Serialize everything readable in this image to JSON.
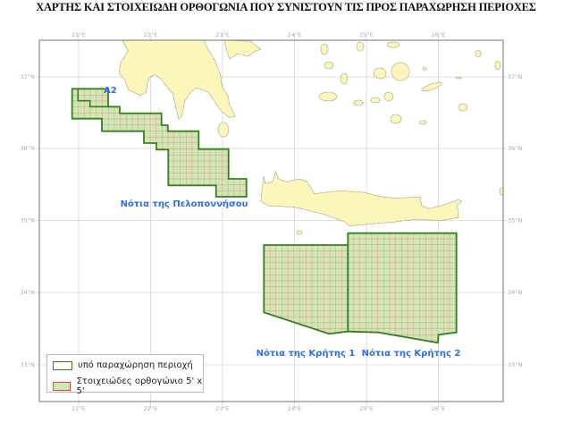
{
  "title": "ΧΑΡΤΗΣ ΚΑΙ ΣΤΟΙΧΕΙΩΔΗ ΟΡΘΟΓΩΝΙΑ ΠΟΥ ΣΥΝΙΣΤΟΥΝ ΤΙΣ ΠΡΟΣ ΠΑΡΑΧΩΡΗΣΗ ΠΕΡΙΟΧΕΣ",
  "longitude_ticks": [
    "21°E",
    "22°E",
    "23°E",
    "24°E",
    "25°E",
    "26°E"
  ],
  "latitude_ticks": [
    "37°N",
    "36°N",
    "35°N",
    "34°N",
    "33°N"
  ],
  "areas": {
    "a2": "A2",
    "peloponnese": "Νότια της Πελοποννήσου",
    "crete1": "Νότια της Κρήτης 1",
    "crete2": "Νότια της Κρήτης 2"
  },
  "legend": {
    "items": [
      {
        "label": "υπό παραχώρηση περιοχή",
        "fill": "#ffffff",
        "stroke": "#3a7d22"
      },
      {
        "label": "Στοιχειώδες ορθογώνιο 5' x 5'",
        "fill": "#cfe6b5",
        "stroke": "#e0453a"
      }
    ]
  },
  "colors": {
    "land": "#fbf6b9",
    "area_border": "#3a7d22",
    "cell_line": "#e86a6a",
    "cell_fill": "#cfe6b5",
    "label": "#2f6fe4"
  }
}
